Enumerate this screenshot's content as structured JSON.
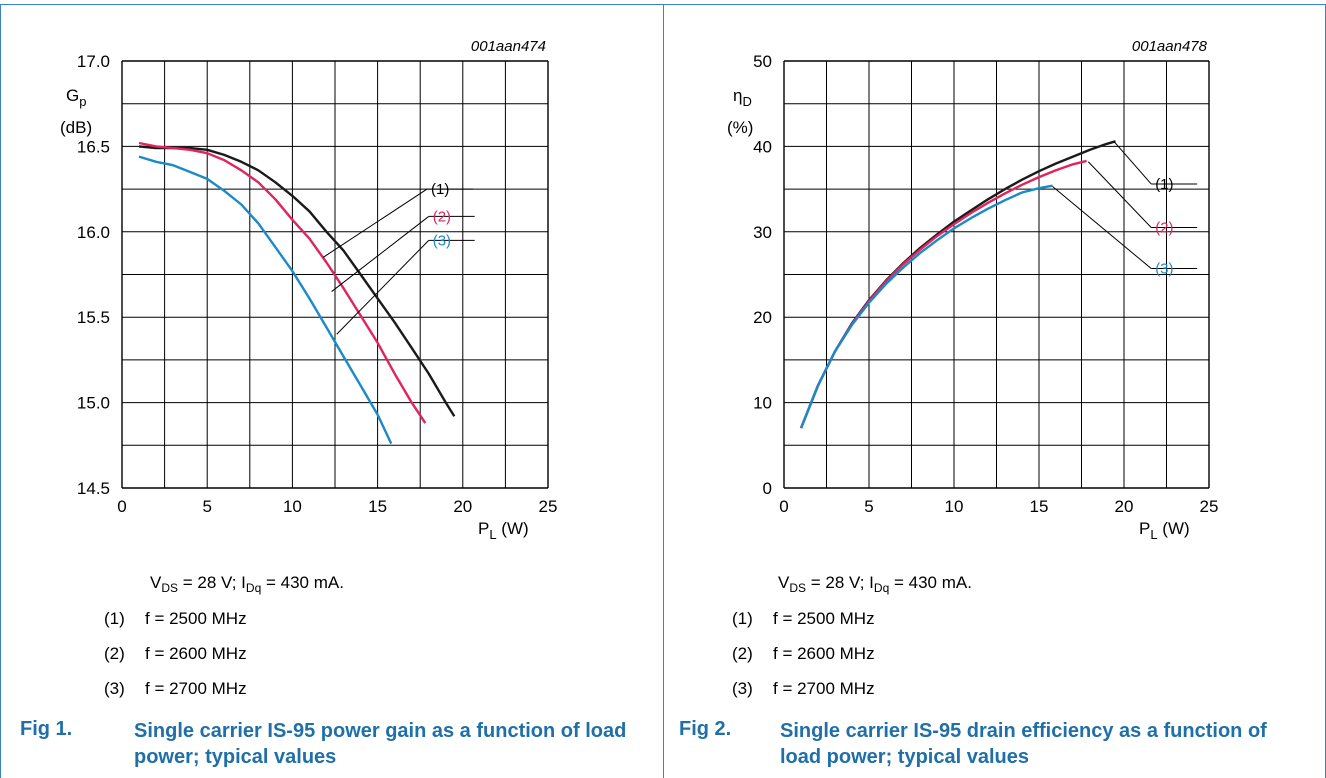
{
  "colors": {
    "series_1": "#1a1a1a",
    "series_2": "#e0245e",
    "series_3": "#1a8ac9",
    "caption": "#1f6fa8",
    "frame": "#3a82c4"
  },
  "chart_data": [
    {
      "type": "line",
      "figure_code": "001aan474",
      "xlabel_main": "P",
      "xlabel_sub": "L",
      "xlabel_unit": " (W)",
      "ylabel_main": "G",
      "ylabel_sub": "p",
      "ylabel_unit": "(dB)",
      "xlim": [
        0,
        25
      ],
      "ylim": [
        14.5,
        17.0
      ],
      "x_ticks": [
        "0",
        "5",
        "10",
        "15",
        "20",
        "25"
      ],
      "y_ticks": [
        "14.5",
        "15.0",
        "15.5",
        "16.0",
        "16.5",
        "17.0"
      ],
      "grid": true,
      "series": [
        {
          "name": "(1)",
          "x": [
            1.0,
            2.0,
            3.0,
            4.0,
            5.0,
            6.0,
            7.0,
            8.0,
            9.0,
            10.0,
            11.0,
            12.0,
            13.0,
            14.0,
            15.0,
            16.0,
            17.0,
            18.0,
            19.0,
            19.5
          ],
          "y": [
            16.5,
            16.49,
            16.49,
            16.49,
            16.48,
            16.45,
            16.41,
            16.36,
            16.29,
            16.21,
            16.12,
            16.0,
            15.89,
            15.75,
            15.61,
            15.47,
            15.32,
            15.17,
            15.0,
            14.92
          ]
        },
        {
          "name": "(2)",
          "x": [
            1.0,
            2.0,
            3.0,
            4.0,
            5.0,
            6.0,
            7.0,
            8.0,
            9.0,
            10.0,
            11.0,
            12.0,
            13.0,
            14.0,
            15.0,
            16.0,
            17.0,
            17.8
          ],
          "y": [
            16.52,
            16.5,
            16.49,
            16.48,
            16.46,
            16.42,
            16.36,
            16.29,
            16.19,
            16.07,
            15.96,
            15.82,
            15.67,
            15.51,
            15.35,
            15.17,
            15.0,
            14.88
          ]
        },
        {
          "name": "(3)",
          "x": [
            1.0,
            2.0,
            3.0,
            4.0,
            5.0,
            6.0,
            7.0,
            8.0,
            9.0,
            10.0,
            11.0,
            12.0,
            13.0,
            14.0,
            15.0,
            15.8
          ],
          "y": [
            16.44,
            16.41,
            16.39,
            16.35,
            16.31,
            16.24,
            16.16,
            16.05,
            15.91,
            15.77,
            15.61,
            15.44,
            15.27,
            15.1,
            14.93,
            14.76
          ]
        }
      ],
      "callout_anchors": [
        [
          11.8,
          15.85
        ],
        [
          12.3,
          15.65
        ],
        [
          12.6,
          15.4
        ]
      ],
      "callout_labels": [
        [
          17.9,
          16.25
        ],
        [
          18.0,
          16.09
        ],
        [
          18.0,
          15.95
        ]
      ]
    },
    {
      "type": "line",
      "figure_code": "001aan478",
      "xlabel_main": "P",
      "xlabel_sub": "L",
      "xlabel_unit": " (W)",
      "ylabel_main": "η",
      "ylabel_sub": "D",
      "ylabel_unit": "(%)",
      "xlim": [
        0,
        25
      ],
      "ylim": [
        0,
        50
      ],
      "x_ticks": [
        "0",
        "5",
        "10",
        "15",
        "20",
        "25"
      ],
      "y_ticks": [
        "0",
        "10",
        "20",
        "30",
        "40",
        "50"
      ],
      "grid": true,
      "series": [
        {
          "name": "(1)",
          "x": [
            1.0,
            2.0,
            3.0,
            4.0,
            5.0,
            6.0,
            7.0,
            8.0,
            9.0,
            10.0,
            11.0,
            12.0,
            13.0,
            14.0,
            15.0,
            16.0,
            17.0,
            18.0,
            19.0,
            19.5
          ],
          "y": [
            7.0,
            12.0,
            16.0,
            19.3,
            22.0,
            24.3,
            26.3,
            28.1,
            29.7,
            31.2,
            32.5,
            33.8,
            35.0,
            36.1,
            37.1,
            38.0,
            38.8,
            39.6,
            40.3,
            40.6
          ]
        },
        {
          "name": "(2)",
          "x": [
            1.0,
            2.0,
            3.0,
            4.0,
            5.0,
            6.0,
            7.0,
            8.0,
            9.0,
            10.0,
            11.0,
            12.0,
            13.0,
            14.0,
            15.0,
            16.0,
            17.0,
            17.8
          ],
          "y": [
            7.0,
            12.0,
            16.0,
            19.2,
            21.9,
            24.2,
            26.2,
            27.9,
            29.5,
            30.9,
            32.2,
            33.4,
            34.5,
            35.5,
            36.4,
            37.2,
            37.9,
            38.3
          ]
        },
        {
          "name": "(3)",
          "x": [
            1.0,
            2.0,
            3.0,
            4.0,
            5.0,
            6.0,
            7.0,
            8.0,
            9.0,
            10.0,
            11.0,
            12.0,
            13.0,
            14.0,
            15.0,
            15.8
          ],
          "y": [
            7.0,
            12.0,
            16.0,
            19.1,
            21.7,
            23.9,
            25.8,
            27.5,
            29.0,
            30.4,
            31.6,
            32.7,
            33.7,
            34.6,
            35.1,
            35.4
          ]
        }
      ],
      "callout_anchors": [
        [
          19.4,
          40.6
        ],
        [
          17.9,
          38.2
        ],
        [
          15.8,
          35.3
        ]
      ],
      "callout_labels": [
        [
          21.6,
          35.6
        ],
        [
          21.6,
          30.5
        ],
        [
          21.6,
          25.7
        ]
      ]
    }
  ],
  "panels": [
    {
      "conditions": {
        "v_main": "V",
        "v_sub": "DS",
        "v_rest": " = 28 V; I",
        "i_sub": "Dq",
        "i_rest": " = 430 mA."
      },
      "notes": [
        {
          "num": "(1)",
          "text": "f = 2500 MHz"
        },
        {
          "num": "(2)",
          "text": "f = 2600 MHz"
        },
        {
          "num": "(3)",
          "text": "f = 2700 MHz"
        }
      ],
      "fig_label": "Fig 1.",
      "fig_caption": "Single carrier IS-95 power gain as a function of load power; typical values"
    },
    {
      "conditions": {
        "v_main": "V",
        "v_sub": "DS",
        "v_rest": " = 28 V; I",
        "i_sub": "Dq",
        "i_rest": " = 430 mA."
      },
      "notes": [
        {
          "num": "(1)",
          "text": "f = 2500 MHz"
        },
        {
          "num": "(2)",
          "text": "f = 2600 MHz"
        },
        {
          "num": "(3)",
          "text": "f = 2700 MHz"
        }
      ],
      "fig_label": "Fig 2.",
      "fig_caption": "Single carrier IS-95 drain efficiency as a function of load power; typical values"
    }
  ]
}
